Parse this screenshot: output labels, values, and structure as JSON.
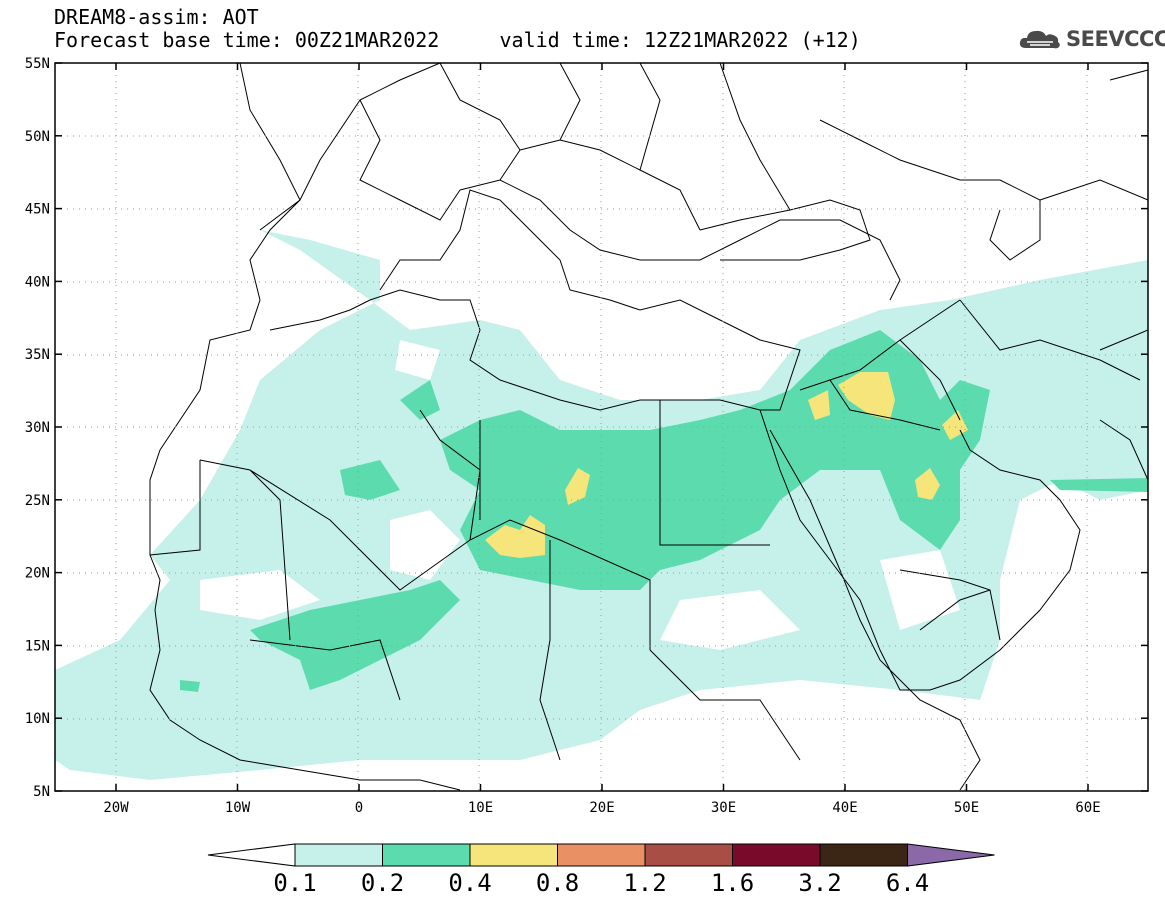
{
  "header": {
    "title_line1": "DREAM8-assim: AOT",
    "title_line2": "Forecast base time: 00Z21MAR2022     valid time: 12Z21MAR2022 (+12)"
  },
  "logo": {
    "text": "SEEVCCC",
    "icon": "cloud-icon"
  },
  "map": {
    "lon_range": [
      -25,
      65
    ],
    "lat_range": [
      5,
      55
    ],
    "gridlines": "dotted",
    "lat_labels": [
      "55N",
      "50N",
      "45N",
      "40N",
      "35N",
      "30N",
      "25N",
      "20N",
      "15N",
      "10N",
      "5N"
    ],
    "lon_labels": [
      "20W",
      "10W",
      "0",
      "10E",
      "20E",
      "30E",
      "40E",
      "50E",
      "60E"
    ]
  },
  "colorbar": {
    "labels": [
      "0.1",
      "0.2",
      "0.4",
      "0.8",
      "1.2",
      "1.6",
      "3.2",
      "6.4"
    ],
    "colors": [
      "#ffffff",
      "#c6f0ea",
      "#5cdcae",
      "#f6e57a",
      "#e99064",
      "#a84e45",
      "#7a0a2a",
      "#3b2515",
      "#8b68a8"
    ]
  },
  "colors": {
    "aot_01_02": "#c6f0ea",
    "aot_02_04": "#5cdcae",
    "aot_04_08": "#f6e57a",
    "border": "#000000",
    "grid": "#9a9a9a"
  }
}
